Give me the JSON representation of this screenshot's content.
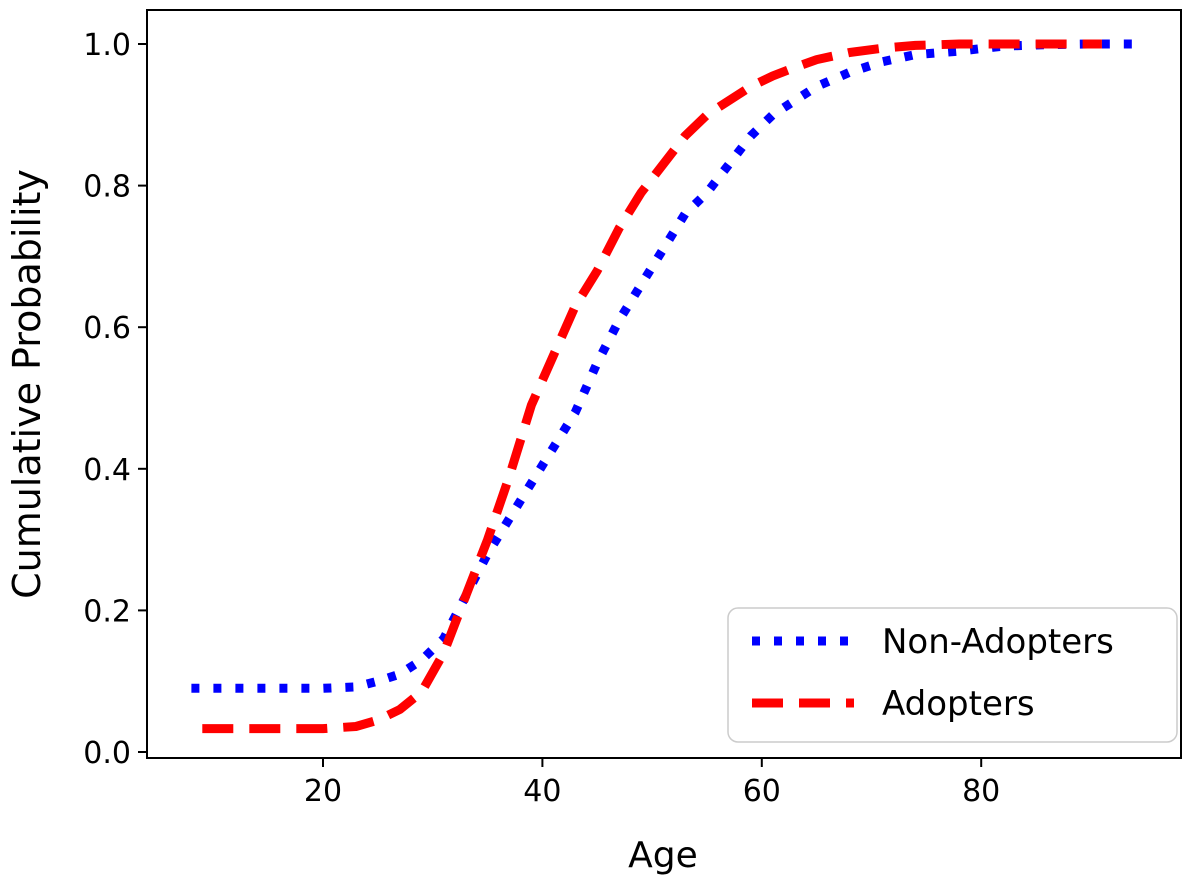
{
  "figure": {
    "background": "#ffffff",
    "plot_border_color": "#000000"
  },
  "chart_data": {
    "type": "line",
    "title": "",
    "xlabel": "Age",
    "ylabel": "Cumulative Probability",
    "xlim": [
      4,
      98
    ],
    "ylim": [
      -0.01,
      1.05
    ],
    "grid": false,
    "xticks": {
      "values": [
        20,
        40,
        60,
        80
      ],
      "labels": [
        "20",
        "40",
        "60",
        "80"
      ]
    },
    "yticks": {
      "values": [
        0.0,
        0.2,
        0.4,
        0.6,
        0.8,
        1.0
      ],
      "labels": [
        "0.0",
        "0.2",
        "0.4",
        "0.6",
        "0.8",
        "1.0"
      ]
    },
    "legend": {
      "position": "lower right",
      "border_color": "#cccccc",
      "background": "#ffffff"
    },
    "series": [
      {
        "name": "Non-Adopters",
        "color": "#0000ff",
        "linestyle": "dotted",
        "linewidth": 9,
        "x": [
          8,
          12,
          16,
          20,
          23,
          25,
          27,
          29,
          31,
          33,
          35,
          37,
          39,
          41,
          43,
          45,
          47,
          49,
          51,
          53,
          55,
          57,
          59,
          61,
          63,
          65,
          68,
          71,
          74,
          78,
          82,
          86,
          90,
          94
        ],
        "y": [
          0.09,
          0.09,
          0.09,
          0.09,
          0.092,
          0.1,
          0.11,
          0.13,
          0.16,
          0.22,
          0.28,
          0.33,
          0.38,
          0.43,
          0.48,
          0.55,
          0.61,
          0.66,
          0.71,
          0.76,
          0.79,
          0.83,
          0.87,
          0.9,
          0.92,
          0.94,
          0.96,
          0.975,
          0.985,
          0.99,
          0.997,
          0.999,
          1.0,
          1.0
        ]
      },
      {
        "name": "Adopters",
        "color": "#ff0000",
        "linestyle": "dashed",
        "linewidth": 9,
        "x": [
          9,
          12,
          16,
          20,
          23,
          25,
          27,
          29,
          31,
          33,
          35,
          37,
          39,
          41,
          43,
          45,
          47,
          49,
          51,
          53,
          55,
          57,
          59,
          61,
          63,
          65,
          68,
          71,
          74,
          78,
          82,
          86,
          91
        ],
        "y": [
          0.033,
          0.033,
          0.033,
          0.033,
          0.036,
          0.045,
          0.06,
          0.085,
          0.14,
          0.22,
          0.3,
          0.39,
          0.49,
          0.56,
          0.63,
          0.68,
          0.74,
          0.79,
          0.83,
          0.87,
          0.9,
          0.92,
          0.94,
          0.955,
          0.967,
          0.978,
          0.988,
          0.994,
          0.998,
          1.0,
          1.0,
          1.0,
          1.0
        ]
      }
    ]
  }
}
